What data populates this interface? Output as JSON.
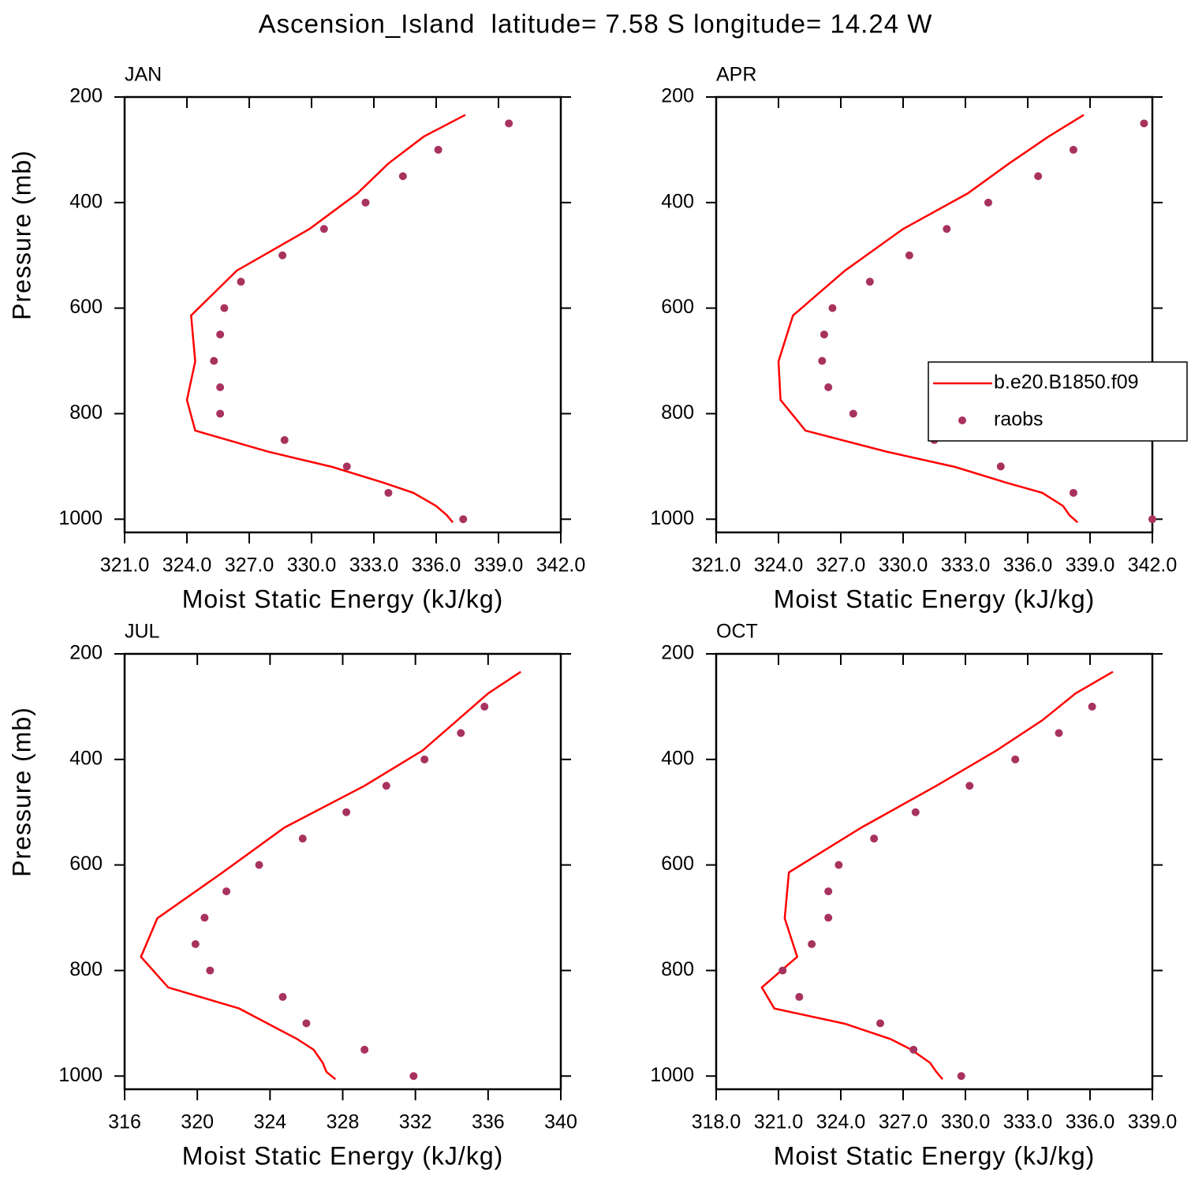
{
  "title": "Ascension_Island  latitude= 7.58 S longitude= 14.24 W",
  "chart_data": [
    {
      "type": "line",
      "panel_label": "JAN",
      "xlabel": "Moist Static Energy (kJ/kg)",
      "ylabel": "Pressure (mb)",
      "xlim": [
        321,
        342
      ],
      "xticks": [
        {
          "value": 321,
          "label": "321.0"
        },
        {
          "value": 324,
          "label": "324.0"
        },
        {
          "value": 327,
          "label": "327.0"
        },
        {
          "value": 330,
          "label": "330.0"
        },
        {
          "value": 333,
          "label": "333.0"
        },
        {
          "value": 336,
          "label": "336.0"
        },
        {
          "value": 339,
          "label": "339.0"
        },
        {
          "value": 342,
          "label": "342.0"
        }
      ],
      "ylim": [
        1025,
        200
      ],
      "yticks": [
        200,
        400,
        600,
        800,
        1000
      ],
      "series": [
        {
          "name": "b.e20.B1850.f09",
          "mode": "line",
          "color": "#ff0000",
          "x": [
            337.4,
            335.4,
            333.7,
            332.2,
            329.9,
            326.4,
            324.2,
            324.4,
            324.0,
            324.4,
            327.9,
            331.0,
            333.4,
            334.9,
            336.0,
            336.5,
            336.8
          ],
          "y": [
            234,
            275,
            326,
            383,
            450,
            529,
            614,
            701,
            774,
            832,
            872,
            901,
            930,
            950,
            975,
            992,
            1006
          ]
        },
        {
          "name": "raobs",
          "mode": "markers",
          "color": "#a8325e",
          "x": [
            339.5,
            336.1,
            334.4,
            332.6,
            330.6,
            328.6,
            326.6,
            325.8,
            325.6,
            325.3,
            325.6,
            325.6,
            328.7,
            331.7,
            333.7,
            337.3
          ],
          "y": [
            250,
            300,
            350,
            400,
            450,
            500,
            550,
            600,
            650,
            700,
            750,
            800,
            850,
            900,
            950,
            1000
          ]
        }
      ]
    },
    {
      "type": "line",
      "panel_label": "APR",
      "xlabel": "Moist Static Energy (kJ/kg)",
      "legend": "center-right",
      "xlim": [
        321,
        342
      ],
      "xticks": [
        {
          "value": 321,
          "label": "321.0"
        },
        {
          "value": 324,
          "label": "324.0"
        },
        {
          "value": 327,
          "label": "327.0"
        },
        {
          "value": 330,
          "label": "330.0"
        },
        {
          "value": 333,
          "label": "333.0"
        },
        {
          "value": 336,
          "label": "336.0"
        },
        {
          "value": 339,
          "label": "339.0"
        },
        {
          "value": 342,
          "label": "342.0"
        }
      ],
      "ylim": [
        1025,
        200
      ],
      "yticks": [
        200,
        400,
        600,
        800,
        1000
      ],
      "series": [
        {
          "name": "b.e20.B1850.f09",
          "mode": "line",
          "color": "#ff0000",
          "x": [
            338.7,
            337.0,
            335.1,
            333.1,
            330.0,
            327.2,
            324.7,
            324.0,
            324.1,
            325.3,
            329.2,
            332.5,
            334.9,
            336.7,
            337.7,
            338.0,
            338.4
          ],
          "y": [
            234,
            275,
            326,
            383,
            450,
            529,
            614,
            701,
            774,
            832,
            872,
            901,
            930,
            950,
            975,
            992,
            1006
          ]
        },
        {
          "name": "raobs",
          "mode": "markers",
          "color": "#a8325e",
          "x": [
            341.6,
            338.2,
            336.5,
            334.1,
            332.1,
            330.3,
            328.4,
            326.6,
            326.2,
            326.1,
            326.4,
            327.6,
            331.5,
            334.7,
            338.2,
            342.0
          ],
          "y": [
            250,
            300,
            350,
            400,
            450,
            500,
            550,
            600,
            650,
            700,
            750,
            800,
            850,
            900,
            950,
            1000
          ]
        }
      ]
    },
    {
      "type": "line",
      "panel_label": "JUL",
      "xlabel": "Moist Static Energy (kJ/kg)",
      "ylabel": "Pressure (mb)",
      "xlim": [
        316,
        340
      ],
      "xticks": [
        316,
        320,
        324,
        328,
        332,
        336,
        340
      ],
      "ylim": [
        1025,
        200
      ],
      "yticks": [
        200,
        400,
        600,
        800,
        1000
      ],
      "series": [
        {
          "name": "b.e20.B1850.f09",
          "mode": "line",
          "color": "#ff0000",
          "x": [
            337.8,
            336.0,
            334.3,
            332.4,
            329.2,
            324.8,
            321.4,
            317.8,
            316.9,
            318.4,
            322.3,
            323.9,
            325.5,
            326.4,
            326.9,
            327.1,
            327.6
          ],
          "y": [
            234,
            275,
            326,
            383,
            450,
            529,
            614,
            701,
            774,
            832,
            872,
            901,
            930,
            950,
            975,
            992,
            1006
          ]
        },
        {
          "name": "raobs",
          "mode": "markers",
          "color": "#a8325e",
          "x": [
            335.8,
            334.5,
            332.5,
            330.4,
            328.2,
            325.8,
            323.4,
            321.6,
            320.4,
            319.9,
            320.7,
            324.7,
            326.0,
            329.2,
            331.9
          ],
          "y": [
            300,
            350,
            400,
            450,
            500,
            550,
            600,
            650,
            700,
            750,
            800,
            850,
            900,
            950,
            1000
          ]
        }
      ]
    },
    {
      "type": "line",
      "panel_label": "OCT",
      "xlabel": "Moist Static Energy (kJ/kg)",
      "xlim": [
        318,
        339
      ],
      "xticks": [
        {
          "value": 318,
          "label": "318.0"
        },
        {
          "value": 321,
          "label": "321.0"
        },
        {
          "value": 324,
          "label": "324.0"
        },
        {
          "value": 327,
          "label": "327.0"
        },
        {
          "value": 330,
          "label": "330.0"
        },
        {
          "value": 333,
          "label": "333.0"
        },
        {
          "value": 336,
          "label": "336.0"
        },
        {
          "value": 339,
          "label": "339.0"
        }
      ],
      "ylim": [
        1025,
        200
      ],
      "yticks": [
        200,
        400,
        600,
        800,
        1000
      ],
      "series": [
        {
          "name": "b.e20.B1850.f09",
          "mode": "line",
          "color": "#ff0000",
          "x": [
            337.1,
            335.3,
            333.7,
            331.5,
            328.6,
            325.0,
            321.5,
            321.3,
            321.9,
            320.2,
            320.8,
            324.2,
            326.4,
            327.4,
            328.3,
            328.6,
            328.9
          ],
          "y": [
            234,
            275,
            326,
            383,
            450,
            529,
            614,
            701,
            774,
            832,
            872,
            901,
            930,
            950,
            975,
            992,
            1006
          ]
        },
        {
          "name": "raobs",
          "mode": "markers",
          "color": "#a8325e",
          "x": [
            336.1,
            334.5,
            332.4,
            330.2,
            327.6,
            325.6,
            323.9,
            323.4,
            323.4,
            322.6,
            321.2,
            322.0,
            325.9,
            327.5,
            329.8
          ],
          "y": [
            300,
            350,
            400,
            450,
            500,
            550,
            600,
            650,
            700,
            750,
            800,
            850,
            900,
            950,
            1000
          ]
        }
      ]
    }
  ]
}
